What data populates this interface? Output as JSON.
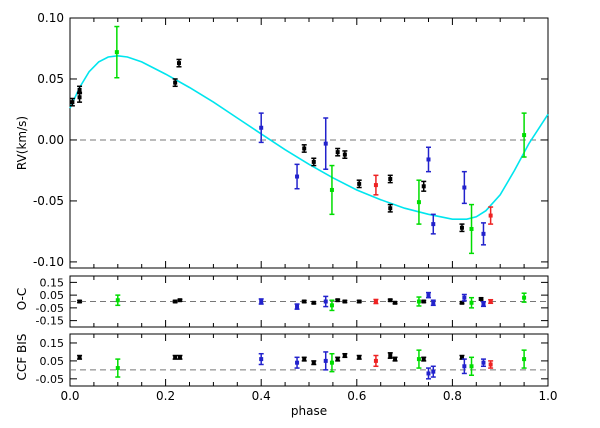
{
  "chart_data": [
    {
      "type": "scatter",
      "panel": "RV",
      "ylabel": "RV(km/s)",
      "xlabel": "",
      "xlim": [
        0.0,
        1.0
      ],
      "ylim": [
        -0.105,
        0.1
      ],
      "yticks": [
        -0.1,
        -0.05,
        0.0,
        0.05,
        0.1
      ],
      "ytick_labels": [
        "-0.10",
        "-0.05",
        "0.00",
        "0.05",
        "0.10"
      ],
      "xticks": [
        0.0,
        0.2,
        0.4,
        0.6,
        0.8,
        1.0
      ],
      "zero_line": 0,
      "model": {
        "color": "#00e5ee",
        "x": [
          0.0,
          0.02,
          0.04,
          0.06,
          0.08,
          0.1,
          0.12,
          0.15,
          0.2,
          0.25,
          0.3,
          0.35,
          0.4,
          0.45,
          0.5,
          0.55,
          0.6,
          0.65,
          0.7,
          0.75,
          0.8,
          0.83,
          0.85,
          0.87,
          0.9,
          0.93,
          0.96,
          1.0
        ],
        "y": [
          0.026,
          0.043,
          0.056,
          0.064,
          0.068,
          0.069,
          0.068,
          0.064,
          0.054,
          0.043,
          0.031,
          0.018,
          0.005,
          -0.008,
          -0.02,
          -0.031,
          -0.041,
          -0.049,
          -0.056,
          -0.061,
          -0.065,
          -0.065,
          -0.063,
          -0.058,
          -0.045,
          -0.025,
          -0.003,
          0.021
        ]
      },
      "series": [
        {
          "name": "",
          "color": "#000000",
          "points": [
            {
              "x": 0.005,
              "y": 0.031,
              "err": 0.003
            },
            {
              "x": 0.02,
              "y": 0.035,
              "err": 0.004
            },
            {
              "x": 0.02,
              "y": 0.041,
              "err": 0.003
            },
            {
              "x": 0.22,
              "y": 0.047,
              "err": 0.003
            },
            {
              "x": 0.228,
              "y": 0.063,
              "err": 0.003
            },
            {
              "x": 0.49,
              "y": -0.007,
              "err": 0.003
            },
            {
              "x": 0.51,
              "y": -0.018,
              "err": 0.003
            },
            {
              "x": 0.56,
              "y": -0.01,
              "err": 0.003
            },
            {
              "x": 0.575,
              "y": -0.012,
              "err": 0.003
            },
            {
              "x": 0.605,
              "y": -0.036,
              "err": 0.003
            },
            {
              "x": 0.67,
              "y": -0.032,
              "err": 0.003
            },
            {
              "x": 0.67,
              "y": -0.056,
              "err": 0.003
            },
            {
              "x": 0.74,
              "y": -0.038,
              "err": 0.004
            },
            {
              "x": 0.82,
              "y": -0.072,
              "err": 0.003
            }
          ]
        },
        {
          "name": "",
          "color": "#00dd00",
          "points": [
            {
              "x": 0.098,
              "y": 0.072,
              "err": 0.021
            },
            {
              "x": 0.548,
              "y": -0.041,
              "err": 0.02
            },
            {
              "x": 0.73,
              "y": -0.051,
              "err": 0.018
            },
            {
              "x": 0.84,
              "y": -0.073,
              "err": 0.02
            },
            {
              "x": 0.95,
              "y": 0.004,
              "err": 0.018
            }
          ]
        },
        {
          "name": "",
          "color": "#2222cc",
          "points": [
            {
              "x": 0.4,
              "y": 0.01,
              "err": 0.012
            },
            {
              "x": 0.475,
              "y": -0.03,
              "err": 0.01
            },
            {
              "x": 0.535,
              "y": -0.003,
              "err": 0.021
            },
            {
              "x": 0.75,
              "y": -0.016,
              "err": 0.01
            },
            {
              "x": 0.76,
              "y": -0.069,
              "err": 0.008
            },
            {
              "x": 0.825,
              "y": -0.039,
              "err": 0.013
            },
            {
              "x": 0.865,
              "y": -0.077,
              "err": 0.009
            }
          ]
        },
        {
          "name": "",
          "color": "#ee2222",
          "points": [
            {
              "x": 0.64,
              "y": -0.037,
              "err": 0.008
            },
            {
              "x": 0.88,
              "y": -0.062,
              "err": 0.007
            }
          ]
        }
      ]
    },
    {
      "type": "scatter",
      "panel": "O-C",
      "ylabel": "O-C",
      "xlim": [
        0.0,
        1.0
      ],
      "ylim": [
        -0.2,
        0.2
      ],
      "yticks": [
        0.15,
        0.05,
        -0.05,
        -0.15
      ],
      "ytick_labels": [
        "0.15",
        "0.05",
        "-0.05",
        "-0.15"
      ],
      "zero_line": 0,
      "series": [
        {
          "name": "",
          "color": "#000000",
          "points": [
            {
              "x": 0.02,
              "y": 0.0,
              "err": 0.008
            },
            {
              "x": 0.22,
              "y": 0.0,
              "err": 0.008
            },
            {
              "x": 0.23,
              "y": 0.01,
              "err": 0.008
            },
            {
              "x": 0.49,
              "y": 0.0,
              "err": 0.008
            },
            {
              "x": 0.51,
              "y": -0.01,
              "err": 0.008
            },
            {
              "x": 0.56,
              "y": 0.01,
              "err": 0.008
            },
            {
              "x": 0.575,
              "y": 0.0,
              "err": 0.008
            },
            {
              "x": 0.605,
              "y": 0.0,
              "err": 0.008
            },
            {
              "x": 0.67,
              "y": 0.01,
              "err": 0.008
            },
            {
              "x": 0.68,
              "y": -0.01,
              "err": 0.008
            },
            {
              "x": 0.74,
              "y": 0.0,
              "err": 0.008
            },
            {
              "x": 0.82,
              "y": -0.01,
              "err": 0.008
            },
            {
              "x": 0.86,
              "y": 0.02,
              "err": 0.008
            }
          ]
        },
        {
          "name": "",
          "color": "#00dd00",
          "points": [
            {
              "x": 0.1,
              "y": 0.01,
              "err": 0.04
            },
            {
              "x": 0.548,
              "y": -0.03,
              "err": 0.04
            },
            {
              "x": 0.73,
              "y": 0.0,
              "err": 0.035
            },
            {
              "x": 0.84,
              "y": -0.01,
              "err": 0.04
            },
            {
              "x": 0.95,
              "y": 0.03,
              "err": 0.035
            }
          ]
        },
        {
          "name": "",
          "color": "#2222cc",
          "points": [
            {
              "x": 0.4,
              "y": 0.0,
              "err": 0.02
            },
            {
              "x": 0.475,
              "y": -0.04,
              "err": 0.02
            },
            {
              "x": 0.535,
              "y": 0.0,
              "err": 0.04
            },
            {
              "x": 0.75,
              "y": 0.05,
              "err": 0.02
            },
            {
              "x": 0.76,
              "y": -0.01,
              "err": 0.02
            },
            {
              "x": 0.825,
              "y": 0.03,
              "err": 0.025
            },
            {
              "x": 0.865,
              "y": -0.02,
              "err": 0.018
            }
          ]
        },
        {
          "name": "",
          "color": "#ee2222",
          "points": [
            {
              "x": 0.64,
              "y": 0.0,
              "err": 0.016
            },
            {
              "x": 0.88,
              "y": 0.0,
              "err": 0.014
            }
          ]
        }
      ]
    },
    {
      "type": "scatter",
      "panel": "CCF BIS",
      "ylabel": "CCF BIS",
      "xlabel": "phase",
      "xlim": [
        0.0,
        1.0
      ],
      "xticks": [
        0.0,
        0.2,
        0.4,
        0.6,
        0.8,
        1.0
      ],
      "xtick_labels": [
        "0.0",
        "0.2",
        "0.4",
        "0.6",
        "0.8",
        "1.0"
      ],
      "ylim": [
        -0.09,
        0.2
      ],
      "yticks": [
        0.15,
        0.05,
        -0.05
      ],
      "ytick_labels": [
        "0.15",
        "0.05",
        "-0.05"
      ],
      "zero_line": 0,
      "series": [
        {
          "name": "",
          "color": "#000000",
          "points": [
            {
              "x": 0.02,
              "y": 0.07,
              "err": 0.01
            },
            {
              "x": 0.22,
              "y": 0.07,
              "err": 0.01
            },
            {
              "x": 0.23,
              "y": 0.07,
              "err": 0.01
            },
            {
              "x": 0.49,
              "y": 0.06,
              "err": 0.01
            },
            {
              "x": 0.51,
              "y": 0.04,
              "err": 0.01
            },
            {
              "x": 0.56,
              "y": 0.06,
              "err": 0.01
            },
            {
              "x": 0.575,
              "y": 0.08,
              "err": 0.01
            },
            {
              "x": 0.605,
              "y": 0.07,
              "err": 0.01
            },
            {
              "x": 0.67,
              "y": 0.08,
              "err": 0.015
            },
            {
              "x": 0.68,
              "y": 0.06,
              "err": 0.01
            },
            {
              "x": 0.74,
              "y": 0.06,
              "err": 0.01
            },
            {
              "x": 0.82,
              "y": 0.07,
              "err": 0.01
            }
          ]
        },
        {
          "name": "",
          "color": "#00dd00",
          "points": [
            {
              "x": 0.1,
              "y": 0.01,
              "err": 0.05
            },
            {
              "x": 0.548,
              "y": 0.04,
              "err": 0.05
            },
            {
              "x": 0.73,
              "y": 0.06,
              "err": 0.05
            },
            {
              "x": 0.84,
              "y": 0.02,
              "err": 0.05
            },
            {
              "x": 0.95,
              "y": 0.06,
              "err": 0.05
            }
          ]
        },
        {
          "name": "",
          "color": "#2222cc",
          "points": [
            {
              "x": 0.4,
              "y": 0.06,
              "err": 0.03
            },
            {
              "x": 0.475,
              "y": 0.04,
              "err": 0.03
            },
            {
              "x": 0.535,
              "y": 0.05,
              "err": 0.05
            },
            {
              "x": 0.75,
              "y": -0.02,
              "err": 0.03
            },
            {
              "x": 0.76,
              "y": -0.01,
              "err": 0.03
            },
            {
              "x": 0.825,
              "y": 0.02,
              "err": 0.04
            },
            {
              "x": 0.865,
              "y": 0.04,
              "err": 0.02
            }
          ]
        },
        {
          "name": "",
          "color": "#ee2222",
          "points": [
            {
              "x": 0.64,
              "y": 0.05,
              "err": 0.03
            },
            {
              "x": 0.88,
              "y": 0.03,
              "err": 0.02
            }
          ]
        }
      ]
    }
  ]
}
